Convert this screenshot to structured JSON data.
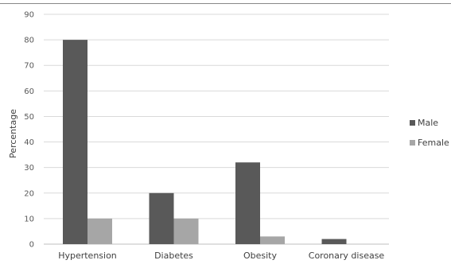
{
  "chart_data": {
    "type": "bar",
    "categories": [
      "Hypertension",
      "Diabetes",
      "Obesity",
      "Coronary disease"
    ],
    "series": [
      {
        "name": "Male",
        "values": [
          80,
          20,
          32,
          2
        ],
        "color": "#595959"
      },
      {
        "name": "Female",
        "values": [
          10,
          10,
          3,
          0
        ],
        "color": "#a6a6a6"
      }
    ],
    "ylabel": "Percentage",
    "ylim": [
      0,
      90
    ],
    "yticks": [
      0,
      10,
      20,
      30,
      40,
      50,
      60,
      70,
      80,
      90
    ],
    "grid": true,
    "legend_position": "right"
  }
}
